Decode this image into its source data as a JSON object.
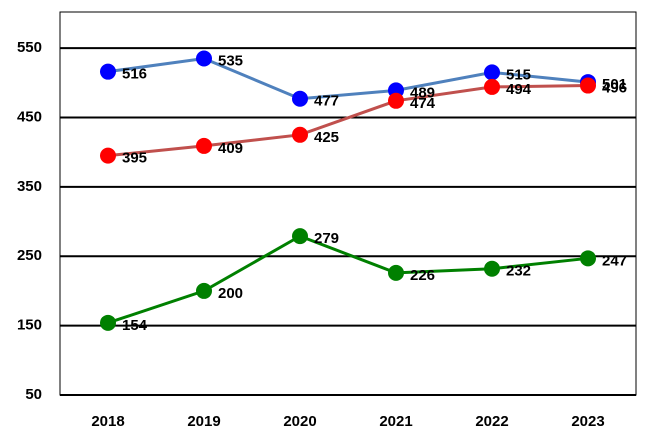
{
  "chart_data": {
    "type": "line",
    "categories": [
      "2018",
      "2019",
      "2020",
      "2021",
      "2022",
      "2023"
    ],
    "series": [
      {
        "color": "#4f81bd",
        "marker_color": "#0000ff",
        "values": [
          516,
          535,
          477,
          489,
          515,
          501
        ]
      },
      {
        "color": "#c0504d",
        "marker_color": "#ff0000",
        "values": [
          395,
          409,
          425,
          474,
          494,
          496
        ]
      },
      {
        "color": "#008000",
        "marker_color": "#008000",
        "values": [
          154,
          200,
          279,
          226,
          232,
          247
        ]
      }
    ],
    "ylim": [
      50,
      602
    ],
    "yticks": [
      50,
      150,
      250,
      350,
      450,
      550
    ],
    "grid": true,
    "data_labels": true
  }
}
